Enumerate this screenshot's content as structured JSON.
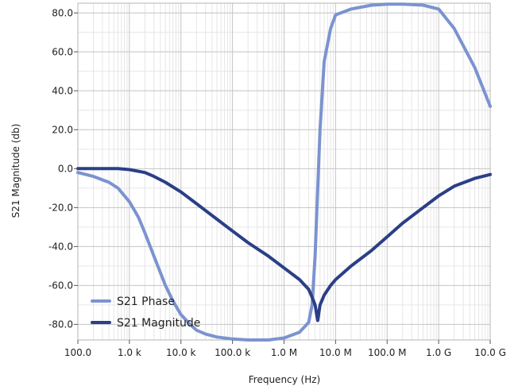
{
  "chart_data": {
    "type": "line",
    "title": "",
    "xlabel": "Frequency (Hz)",
    "ylabel": "S21 Magnitude (db)",
    "x_scale": "log",
    "xlim": [
      100,
      10000000000
    ],
    "ylim": [
      -88,
      85
    ],
    "x_ticks": [
      {
        "value": 100,
        "label": "100.0"
      },
      {
        "value": 1000,
        "label": "1.0 k"
      },
      {
        "value": 10000,
        "label": "10.0 k"
      },
      {
        "value": 100000,
        "label": "100.0 k"
      },
      {
        "value": 1000000,
        "label": "1.0 M"
      },
      {
        "value": 10000000,
        "label": "10.0 M"
      },
      {
        "value": 100000000,
        "label": "100.0 M"
      },
      {
        "value": 1000000000,
        "label": "1.0 G"
      },
      {
        "value": 10000000000,
        "label": "10.0 G"
      }
    ],
    "y_ticks": [
      {
        "value": 80,
        "label": "80.0"
      },
      {
        "value": 60,
        "label": "60.0"
      },
      {
        "value": 40,
        "label": "40.0"
      },
      {
        "value": 20,
        "label": "20.0"
      },
      {
        "value": 0,
        "label": "0.0"
      },
      {
        "value": -20,
        "label": "-20.0"
      },
      {
        "value": -40,
        "label": "-40.0"
      },
      {
        "value": -60,
        "label": "-60.0"
      },
      {
        "value": -80,
        "label": "-80.0"
      }
    ],
    "grid": true,
    "legend_position": "bottom-left",
    "series": [
      {
        "name": "S21 Phase",
        "color": "#7b93cf",
        "x": [
          100,
          200,
          400,
          600,
          1000,
          1500,
          2000,
          3000,
          5000,
          7000,
          10000,
          15000,
          20000,
          30000,
          50000,
          100000,
          200000,
          500000,
          1000000,
          2000000,
          3000000,
          3500000,
          4000000,
          4500000,
          5000000,
          6000000,
          8000000,
          10000000,
          20000000,
          50000000,
          100000000,
          200000000,
          500000000,
          1000000000,
          2000000000,
          5000000000,
          10000000000
        ],
        "y": [
          -2,
          -4,
          -7,
          -10,
          -17,
          -25,
          -33,
          -45,
          -60,
          -68,
          -75,
          -80,
          -83,
          -85,
          -86.5,
          -87.5,
          -88,
          -88,
          -87,
          -84,
          -79,
          -70,
          -45,
          -10,
          20,
          55,
          72,
          79,
          82,
          84,
          84.5,
          84.5,
          84,
          82,
          72,
          52,
          32
        ]
      },
      {
        "name": "S21 Magnitude",
        "color": "#2a3f86",
        "x": [
          100,
          300,
          600,
          1000,
          2000,
          3000,
          5000,
          10000,
          20000,
          50000,
          100000,
          200000,
          500000,
          1000000,
          2000000,
          3000000,
          3500000,
          4000000,
          4500000,
          5000000,
          6000000,
          8000000,
          10000000,
          20000000,
          50000000,
          100000000,
          200000000,
          500000000,
          1000000000,
          2000000000,
          5000000000,
          10000000000
        ],
        "y": [
          0,
          0,
          0,
          -0.5,
          -2,
          -4,
          -7,
          -12,
          -18,
          -26,
          -32,
          -38,
          -45,
          -51,
          -57,
          -62,
          -66,
          -70,
          -78,
          -70,
          -65,
          -60,
          -57,
          -50,
          -42,
          -35,
          -28,
          -20,
          -14,
          -9,
          -5,
          -3
        ]
      }
    ]
  }
}
